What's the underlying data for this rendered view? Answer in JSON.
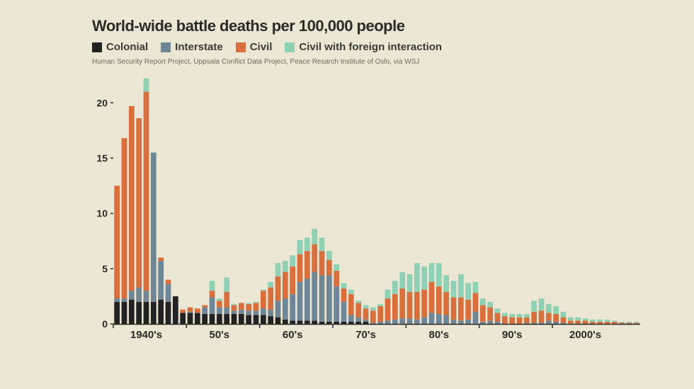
{
  "background_color": "#ece7d5",
  "title": {
    "text": "World-wide battle deaths per 100,000 people",
    "color": "#2b2b26",
    "fontsize": 22
  },
  "legend": {
    "fontsize": 15,
    "text_color": "#3a3a34",
    "items": [
      {
        "label": "Colonial",
        "color": "#222222"
      },
      {
        "label": "Interstate",
        "color": "#6e8696"
      },
      {
        "label": "Civil",
        "color": "#d86f3c"
      },
      {
        "label": "Civil with foreign interaction",
        "color": "#8fd1b5"
      }
    ]
  },
  "source": {
    "text": "Human Security Report Project, Uppsala Conflict Data Project, Peace Resarch Institute of Oslo, via WSJ",
    "color": "#6d6a5c",
    "fontsize": 10
  },
  "chart": {
    "type": "stacked-bar",
    "ylim": [
      0,
      22
    ],
    "yticks": [
      0,
      5,
      10,
      15,
      20
    ],
    "ytick_fontsize": 14,
    "ytick_color": "#2b2b26",
    "xtick_fontsize": 15,
    "xtick_color": "#2b2b26",
    "axis_color": "#2b2b26",
    "baseline_color": "#2b2b26",
    "decade_labels": [
      "1940's",
      "50's",
      "60's",
      "70's",
      "80's",
      "90's",
      "2000's"
    ],
    "bar_gap_ratio": 0.25,
    "series_colors": {
      "colonial": "#222222",
      "interstate": "#6e8696",
      "civil": "#d86f3c",
      "civil_fi": "#8fd1b5"
    },
    "bars": [
      {
        "colonial": 2.0,
        "interstate": 0.3,
        "civil": 10.2,
        "civil_fi": 0.0
      },
      {
        "colonial": 2.0,
        "interstate": 0.3,
        "civil": 14.5,
        "civil_fi": 0.0
      },
      {
        "colonial": 2.2,
        "interstate": 0.8,
        "civil": 16.7,
        "civil_fi": 0.0
      },
      {
        "colonial": 2.0,
        "interstate": 1.3,
        "civil": 15.3,
        "civil_fi": 0.0
      },
      {
        "colonial": 2.0,
        "interstate": 1.0,
        "civil": 18.0,
        "civil_fi": 1.2
      },
      {
        "colonial": 2.0,
        "interstate": 13.5,
        "civil": 0.0,
        "civil_fi": 0.0
      },
      {
        "colonial": 2.2,
        "interstate": 3.5,
        "civil": 0.3,
        "civil_fi": 0.0
      },
      {
        "colonial": 2.0,
        "interstate": 1.6,
        "civil": 0.4,
        "civil_fi": 0.0
      },
      {
        "colonial": 2.5,
        "interstate": 0.0,
        "civil": 0.0,
        "civil_fi": 0.0
      },
      {
        "colonial": 1.0,
        "interstate": 0.0,
        "civil": 0.3,
        "civil_fi": 0.0
      },
      {
        "colonial": 1.0,
        "interstate": 0.1,
        "civil": 0.4,
        "civil_fi": 0.0
      },
      {
        "colonial": 1.0,
        "interstate": 0.0,
        "civil": 0.4,
        "civil_fi": 0.0
      },
      {
        "colonial": 0.9,
        "interstate": 0.6,
        "civil": 0.2,
        "civil_fi": 0.0
      },
      {
        "colonial": 0.9,
        "interstate": 1.5,
        "civil": 0.6,
        "civil_fi": 0.9
      },
      {
        "colonial": 0.9,
        "interstate": 0.6,
        "civil": 0.6,
        "civil_fi": 0.2
      },
      {
        "colonial": 0.9,
        "interstate": 0.6,
        "civil": 1.4,
        "civil_fi": 1.3
      },
      {
        "colonial": 0.9,
        "interstate": 0.3,
        "civil": 0.5,
        "civil_fi": 0.1
      },
      {
        "colonial": 0.9,
        "interstate": 0.4,
        "civil": 0.6,
        "civil_fi": 0.0
      },
      {
        "colonial": 0.8,
        "interstate": 0.4,
        "civil": 0.6,
        "civil_fi": 0.1
      },
      {
        "colonial": 0.8,
        "interstate": 0.4,
        "civil": 0.7,
        "civil_fi": 0.1
      },
      {
        "colonial": 0.8,
        "interstate": 0.6,
        "civil": 1.6,
        "civil_fi": 0.1
      },
      {
        "colonial": 0.7,
        "interstate": 0.6,
        "civil": 2.0,
        "civil_fi": 0.5
      },
      {
        "colonial": 0.6,
        "interstate": 1.5,
        "civil": 2.2,
        "civil_fi": 1.2
      },
      {
        "colonial": 0.4,
        "interstate": 1.9,
        "civil": 2.4,
        "civil_fi": 1.0
      },
      {
        "colonial": 0.3,
        "interstate": 2.4,
        "civil": 2.5,
        "civil_fi": 1.0
      },
      {
        "colonial": 0.3,
        "interstate": 3.5,
        "civil": 2.5,
        "civil_fi": 1.3
      },
      {
        "colonial": 0.3,
        "interstate": 3.8,
        "civil": 2.5,
        "civil_fi": 1.2
      },
      {
        "colonial": 0.3,
        "interstate": 4.4,
        "civil": 2.5,
        "civil_fi": 1.4
      },
      {
        "colonial": 0.2,
        "interstate": 4.2,
        "civil": 2.2,
        "civil_fi": 1.2
      },
      {
        "colonial": 0.2,
        "interstate": 4.2,
        "civil": 1.4,
        "civil_fi": 0.8
      },
      {
        "colonial": 0.2,
        "interstate": 3.2,
        "civil": 1.4,
        "civil_fi": 0.6
      },
      {
        "colonial": 0.2,
        "interstate": 1.8,
        "civil": 1.2,
        "civil_fi": 0.5
      },
      {
        "colonial": 0.2,
        "interstate": 0.6,
        "civil": 1.9,
        "civil_fi": 0.4
      },
      {
        "colonial": 0.2,
        "interstate": 0.4,
        "civil": 1.3,
        "civil_fi": 0.2
      },
      {
        "colonial": 0.2,
        "interstate": 0.2,
        "civil": 1.0,
        "civil_fi": 0.3
      },
      {
        "colonial": 0.0,
        "interstate": 0.1,
        "civil": 1.1,
        "civil_fi": 0.3
      },
      {
        "colonial": 0.0,
        "interstate": 0.2,
        "civil": 1.4,
        "civil_fi": 0.2
      },
      {
        "colonial": 0.0,
        "interstate": 0.3,
        "civil": 2.0,
        "civil_fi": 0.8
      },
      {
        "colonial": 0.0,
        "interstate": 0.4,
        "civil": 2.3,
        "civil_fi": 1.2
      },
      {
        "colonial": 0.0,
        "interstate": 0.5,
        "civil": 2.7,
        "civil_fi": 1.5
      },
      {
        "colonial": 0.0,
        "interstate": 0.5,
        "civil": 2.4,
        "civil_fi": 1.6
      },
      {
        "colonial": 0.0,
        "interstate": 0.4,
        "civil": 2.5,
        "civil_fi": 2.6
      },
      {
        "colonial": 0.0,
        "interstate": 0.6,
        "civil": 2.5,
        "civil_fi": 2.1
      },
      {
        "colonial": 0.0,
        "interstate": 1.0,
        "civil": 2.8,
        "civil_fi": 1.7
      },
      {
        "colonial": 0.0,
        "interstate": 0.9,
        "civil": 2.5,
        "civil_fi": 2.1
      },
      {
        "colonial": 0.0,
        "interstate": 0.8,
        "civil": 2.1,
        "civil_fi": 1.5
      },
      {
        "colonial": 0.0,
        "interstate": 0.4,
        "civil": 2.0,
        "civil_fi": 1.5
      },
      {
        "colonial": 0.0,
        "interstate": 0.3,
        "civil": 2.1,
        "civil_fi": 2.1
      },
      {
        "colonial": 0.0,
        "interstate": 0.4,
        "civil": 1.8,
        "civil_fi": 1.5
      },
      {
        "colonial": 0.0,
        "interstate": 1.1,
        "civil": 1.7,
        "civil_fi": 1.0
      },
      {
        "colonial": 0.0,
        "interstate": 0.2,
        "civil": 1.5,
        "civil_fi": 0.6
      },
      {
        "colonial": 0.0,
        "interstate": 0.3,
        "civil": 1.2,
        "civil_fi": 0.5
      },
      {
        "colonial": 0.0,
        "interstate": 0.2,
        "civil": 0.8,
        "civil_fi": 0.4
      },
      {
        "colonial": 0.0,
        "interstate": 0.0,
        "civil": 0.7,
        "civil_fi": 0.3
      },
      {
        "colonial": 0.0,
        "interstate": 0.0,
        "civil": 0.6,
        "civil_fi": 0.3
      },
      {
        "colonial": 0.0,
        "interstate": 0.0,
        "civil": 0.6,
        "civil_fi": 0.3
      },
      {
        "colonial": 0.0,
        "interstate": 0.1,
        "civil": 0.5,
        "civil_fi": 0.3
      },
      {
        "colonial": 0.0,
        "interstate": 0.1,
        "civil": 1.0,
        "civil_fi": 1.0
      },
      {
        "colonial": 0.0,
        "interstate": 0.1,
        "civil": 1.1,
        "civil_fi": 1.1
      },
      {
        "colonial": 0.0,
        "interstate": 0.3,
        "civil": 0.7,
        "civil_fi": 0.8
      },
      {
        "colonial": 0.0,
        "interstate": 0.2,
        "civil": 0.7,
        "civil_fi": 0.7
      },
      {
        "colonial": 0.0,
        "interstate": 0.1,
        "civil": 0.5,
        "civil_fi": 0.5
      },
      {
        "colonial": 0.0,
        "interstate": 0.0,
        "civil": 0.3,
        "civil_fi": 0.3
      },
      {
        "colonial": 0.0,
        "interstate": 0.0,
        "civil": 0.3,
        "civil_fi": 0.3
      },
      {
        "colonial": 0.0,
        "interstate": 0.0,
        "civil": 0.3,
        "civil_fi": 0.2
      },
      {
        "colonial": 0.0,
        "interstate": 0.0,
        "civil": 0.2,
        "civil_fi": 0.2
      },
      {
        "colonial": 0.0,
        "interstate": 0.0,
        "civil": 0.2,
        "civil_fi": 0.2
      },
      {
        "colonial": 0.0,
        "interstate": 0.0,
        "civil": 0.2,
        "civil_fi": 0.2
      },
      {
        "colonial": 0.0,
        "interstate": 0.0,
        "civil": 0.2,
        "civil_fi": 0.1
      },
      {
        "colonial": 0.0,
        "interstate": 0.0,
        "civil": 0.1,
        "civil_fi": 0.1
      },
      {
        "colonial": 0.0,
        "interstate": 0.0,
        "civil": 0.1,
        "civil_fi": 0.1
      },
      {
        "colonial": 0.0,
        "interstate": 0.0,
        "civil": 0.1,
        "civil_fi": 0.1
      }
    ]
  }
}
